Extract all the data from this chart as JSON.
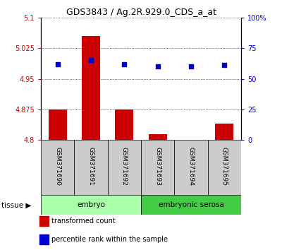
{
  "title": "GDS3843 / Ag.2R.929.0_CDS_a_at",
  "samples": [
    "GSM371690",
    "GSM371691",
    "GSM371692",
    "GSM371693",
    "GSM371694",
    "GSM371695"
  ],
  "transformed_counts": [
    4.875,
    5.055,
    4.875,
    4.815,
    4.8,
    4.84
  ],
  "percentile_ranks": [
    62,
    65,
    62,
    60,
    60,
    61
  ],
  "tissue_groups": [
    {
      "label": "embryo",
      "indices": [
        0,
        1,
        2
      ],
      "color": "#aaffaa"
    },
    {
      "label": "embryonic serosa",
      "indices": [
        3,
        4,
        5
      ],
      "color": "#44cc44"
    }
  ],
  "ylim_left": [
    4.8,
    5.1
  ],
  "ylim_right": [
    0,
    100
  ],
  "yticks_left": [
    4.8,
    4.875,
    4.95,
    5.025,
    5.1
  ],
  "yticks_right": [
    0,
    25,
    50,
    75,
    100
  ],
  "ytick_labels_left": [
    "4.8",
    "4.875",
    "4.95",
    "5.025",
    "5.1"
  ],
  "ytick_labels_right": [
    "0",
    "25",
    "50",
    "75",
    "100%"
  ],
  "bar_color": "#cc0000",
  "dot_color": "#0000cc",
  "bar_width": 0.55,
  "bg_color": "#ffffff",
  "sample_box_color": "#cccccc",
  "tissue_label": "tissue",
  "legend_items": [
    {
      "label": "transformed count",
      "color": "#cc0000"
    },
    {
      "label": "percentile rank within the sample",
      "color": "#0000cc"
    }
  ]
}
